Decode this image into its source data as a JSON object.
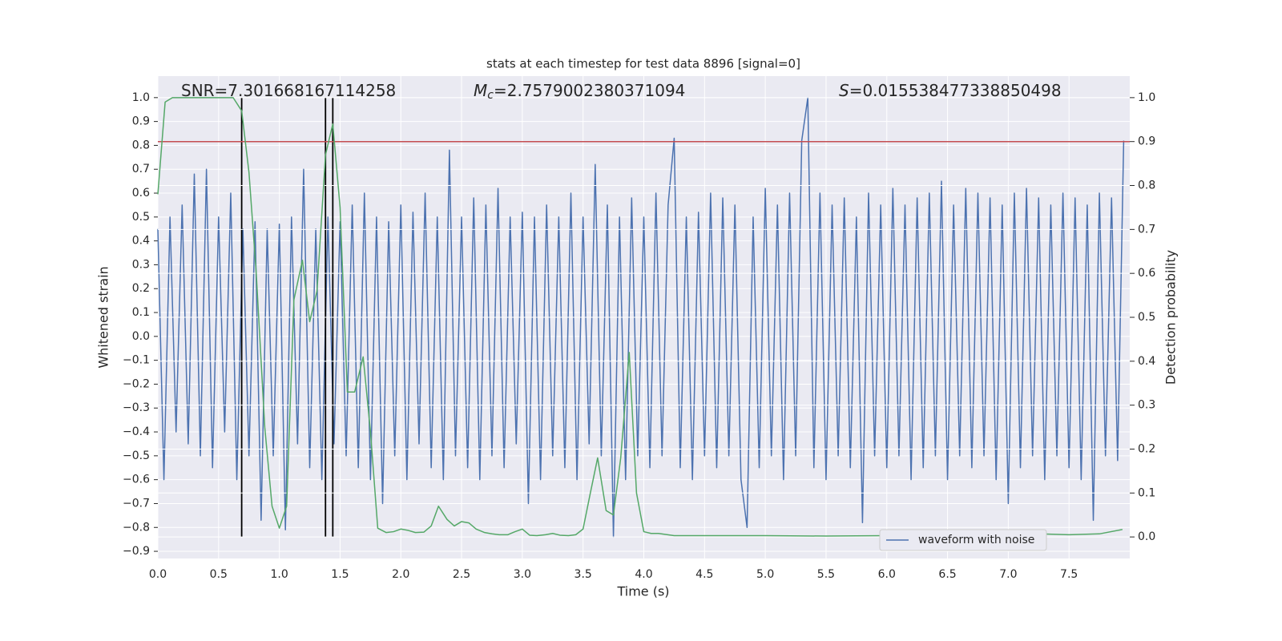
{
  "chart_data": {
    "type": "line",
    "title": "stats at each timestep for test data 8896 [signal=0]",
    "xlabel": "Time (s)",
    "ylabel": "Whitened strain",
    "y2label": "Detection probability",
    "xlim": [
      0,
      8.0
    ],
    "ylim": [
      -0.93,
      1.09
    ],
    "y2lim": [
      -0.049,
      1.049
    ],
    "xticks": [
      {
        "value": 0,
        "label": "0.0"
      },
      0.5,
      {
        "value": 1,
        "label": "1.0"
      },
      1.5,
      {
        "value": 2,
        "label": "2.0"
      },
      2.5,
      {
        "value": 3,
        "label": "3.0"
      },
      3.5,
      {
        "value": 4,
        "label": "4.0"
      },
      4.5,
      {
        "value": 5,
        "label": "5.0"
      },
      5.5,
      {
        "value": 6,
        "label": "6.0"
      },
      6.5,
      {
        "value": 7,
        "label": "7.0"
      },
      7.5
    ],
    "yticks": [
      {
        "value": -0.9,
        "label": "−0.9"
      },
      {
        "value": -0.8,
        "label": "−0.8"
      },
      {
        "value": -0.7,
        "label": "−0.7"
      },
      {
        "value": -0.6,
        "label": "−0.6"
      },
      {
        "value": -0.5,
        "label": "−0.5"
      },
      {
        "value": -0.4,
        "label": "−0.4"
      },
      {
        "value": -0.3,
        "label": "−0.3"
      },
      {
        "value": -0.2,
        "label": "−0.2"
      },
      {
        "value": -0.1,
        "label": "−0.1"
      },
      {
        "value": 0,
        "label": "0.0"
      },
      0.1,
      0.2,
      0.3,
      0.4,
      0.5,
      0.6,
      0.7,
      0.8,
      0.9,
      {
        "value": 1,
        "label": "1.0"
      }
    ],
    "y2ticks": [
      {
        "value": 0,
        "label": "0.0"
      },
      0.1,
      0.2,
      0.3,
      0.4,
      0.5,
      0.6,
      0.7,
      0.8,
      0.9,
      {
        "value": 1,
        "label": "1.0"
      }
    ],
    "grid": true,
    "legend": "lower right",
    "series": [
      {
        "name": "waveform with noise",
        "color": "#4c72b0",
        "x": [
          0,
          0.05,
          0.1,
          0.15,
          0.2,
          0.25,
          0.3,
          0.35,
          0.4,
          0.45,
          0.5,
          0.55,
          0.6,
          0.65,
          0.7,
          0.75,
          0.8,
          0.85,
          0.9,
          0.95,
          1.0,
          1.05,
          1.1,
          1.15,
          1.2,
          1.25,
          1.3,
          1.35,
          1.4,
          1.45,
          1.5,
          1.55,
          1.6,
          1.65,
          1.7,
          1.75,
          1.8,
          1.85,
          1.9,
          1.95,
          2.0,
          2.05,
          2.1,
          2.15,
          2.2,
          2.25,
          2.3,
          2.35,
          2.4,
          2.45,
          2.5,
          2.55,
          2.6,
          2.65,
          2.7,
          2.75,
          2.8,
          2.85,
          2.9,
          2.95,
          3.0,
          3.05,
          3.1,
          3.15,
          3.2,
          3.25,
          3.3,
          3.35,
          3.4,
          3.45,
          3.5,
          3.55,
          3.6,
          3.65,
          3.7,
          3.75,
          3.8,
          3.85,
          3.9,
          3.95,
          4.0,
          4.05,
          4.1,
          4.15,
          4.2,
          4.25,
          4.3,
          4.35,
          4.4,
          4.45,
          4.5,
          4.55,
          4.6,
          4.65,
          4.7,
          4.75,
          4.8,
          4.85,
          4.9,
          4.95,
          5.0,
          5.05,
          5.1,
          5.15,
          5.2,
          5.25,
          5.3,
          5.35,
          5.4,
          5.45,
          5.5,
          5.55,
          5.6,
          5.65,
          5.7,
          5.75,
          5.8,
          5.85,
          5.9,
          5.95,
          6.0,
          6.05,
          6.1,
          6.15,
          6.2,
          6.25,
          6.3,
          6.35,
          6.4,
          6.45,
          6.5,
          6.55,
          6.6,
          6.65,
          6.7,
          6.75,
          6.8,
          6.85,
          6.9,
          6.95,
          7.0,
          7.05,
          7.1,
          7.15,
          7.2,
          7.25,
          7.3,
          7.35,
          7.4,
          7.45,
          7.5,
          7.55,
          7.6,
          7.65,
          7.7,
          7.75,
          7.8,
          7.85,
          7.9,
          7.95
        ],
        "values": [
          0.45,
          -0.6,
          0.5,
          -0.4,
          0.55,
          -0.45,
          0.68,
          -0.5,
          0.7,
          -0.55,
          0.5,
          -0.4,
          0.6,
          -0.6,
          0.45,
          -0.5,
          0.48,
          -0.77,
          0.45,
          -0.5,
          0.47,
          -0.81,
          0.5,
          -0.45,
          0.7,
          -0.55,
          0.45,
          -0.6,
          0.5,
          -0.45,
          0.48,
          -0.5,
          0.55,
          -0.55,
          0.6,
          -0.6,
          0.5,
          -0.7,
          0.48,
          -0.5,
          0.55,
          -0.6,
          0.52,
          -0.45,
          0.6,
          -0.55,
          0.5,
          -0.6,
          0.78,
          -0.5,
          0.5,
          -0.55,
          0.58,
          -0.6,
          0.55,
          -0.5,
          0.62,
          -0.55,
          0.5,
          -0.45,
          0.52,
          -0.7,
          0.5,
          -0.6,
          0.55,
          -0.5,
          0.5,
          -0.55,
          0.6,
          -0.6,
          0.5,
          -0.45,
          0.72,
          -0.5,
          0.55,
          -0.84,
          0.5,
          -0.6,
          0.58,
          -0.5,
          0.5,
          -0.55,
          0.6,
          -0.5,
          0.55,
          0.83,
          -0.55,
          0.5,
          -0.6,
          0.52,
          -0.5,
          0.6,
          -0.55,
          0.58,
          -0.5,
          0.55,
          -0.6,
          -0.8,
          0.5,
          -0.55,
          0.62,
          -0.5,
          0.55,
          -0.6,
          0.6,
          -0.5,
          0.82,
          1.0,
          -0.55,
          0.6,
          -0.6,
          0.55,
          -0.5,
          0.58,
          -0.55,
          0.5,
          -0.78,
          0.6,
          -0.5,
          0.55,
          -0.55,
          0.62,
          -0.5,
          0.55,
          -0.6,
          0.58,
          -0.55,
          0.6,
          -0.5,
          0.65,
          -0.6,
          0.55,
          -0.5,
          0.62,
          -0.55,
          0.6,
          -0.5,
          0.58,
          -0.6,
          0.55,
          -0.7,
          0.6,
          -0.55,
          0.62,
          -0.5,
          0.58,
          -0.6,
          0.55,
          -0.5,
          0.6,
          -0.55,
          0.58,
          -0.6,
          0.55,
          -0.77,
          0.6,
          -0.5,
          0.58,
          -0.52,
          0.82
        ]
      },
      {
        "color": "#55a868",
        "axis": "y2",
        "x": [
          0,
          0.06,
          0.12,
          0.19,
          0.25,
          0.31,
          0.38,
          0.44,
          0.5,
          0.56,
          0.62,
          0.69,
          0.75,
          0.81,
          0.88,
          0.94,
          1.0,
          1.06,
          1.12,
          1.19,
          1.25,
          1.31,
          1.38,
          1.44,
          1.5,
          1.56,
          1.62,
          1.69,
          1.75,
          1.81,
          1.88,
          1.94,
          2.0,
          2.06,
          2.12,
          2.19,
          2.25,
          2.31,
          2.38,
          2.44,
          2.5,
          2.56,
          2.62,
          2.69,
          2.75,
          2.81,
          2.88,
          2.94,
          3.0,
          3.06,
          3.12,
          3.19,
          3.25,
          3.31,
          3.38,
          3.44,
          3.5,
          3.56,
          3.62,
          3.69,
          3.75,
          3.81,
          3.88,
          3.94,
          4.0,
          4.06,
          4.12,
          4.25,
          4.5,
          5.0,
          5.5,
          6.0,
          6.5,
          6.88,
          7.0,
          7.12,
          7.25,
          7.5,
          7.75,
          7.94
        ],
        "values": [
          0.78,
          0.99,
          1.0,
          1.0,
          1.0,
          1.0,
          1.0,
          1.0,
          1.0,
          1.0,
          1.0,
          0.97,
          0.83,
          0.6,
          0.25,
          0.07,
          0.02,
          0.07,
          0.54,
          0.63,
          0.49,
          0.56,
          0.87,
          0.94,
          0.75,
          0.33,
          0.33,
          0.41,
          0.24,
          0.02,
          0.01,
          0.012,
          0.018,
          0.015,
          0.01,
          0.011,
          0.025,
          0.07,
          0.04,
          0.025,
          0.035,
          0.032,
          0.018,
          0.01,
          0.007,
          0.005,
          0.005,
          0.012,
          0.018,
          0.004,
          0.003,
          0.005,
          0.008,
          0.004,
          0.003,
          0.005,
          0.018,
          0.1,
          0.18,
          0.06,
          0.05,
          0.18,
          0.42,
          0.1,
          0.012,
          0.008,
          0.008,
          0.003,
          0.003,
          0.003,
          0.002,
          0.003,
          0.002,
          0.003,
          0.005,
          0.005,
          0.007,
          0.005,
          0.007,
          0.017
        ]
      }
    ],
    "hline": {
      "value": 0.9,
      "axis": "y2",
      "color": "#c44e52"
    },
    "vlines": {
      "x": [
        0.69,
        1.38,
        1.44
      ],
      "color": "#000000"
    },
    "annotations": [
      {
        "text": "SNR=7.301668167114258"
      },
      {
        "symbol": "M",
        "subscript": "c",
        "text": "=2.7579002380371094"
      },
      {
        "symbol": "S",
        "text": "=0.015538477338850498"
      }
    ]
  }
}
